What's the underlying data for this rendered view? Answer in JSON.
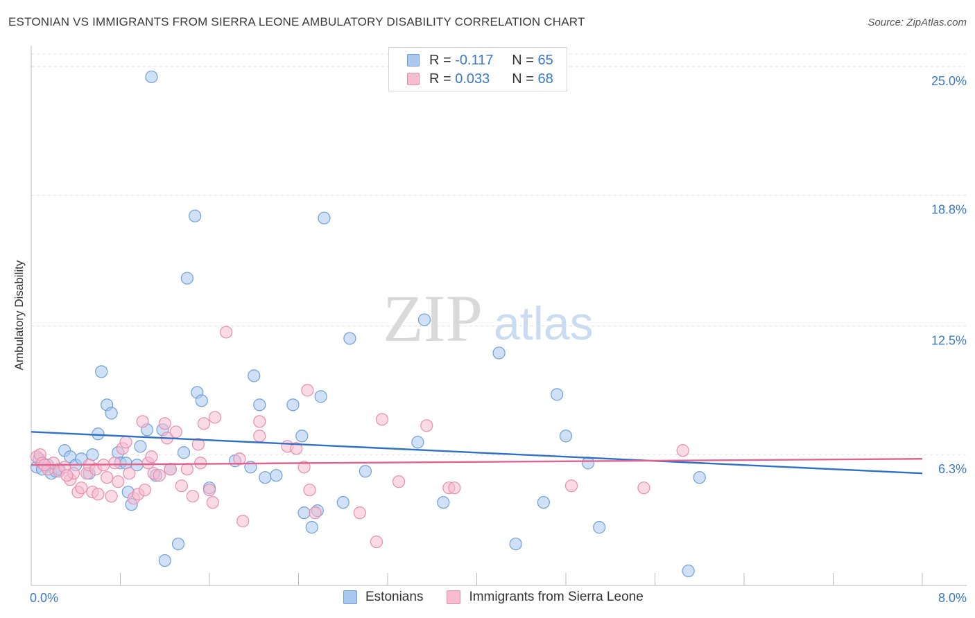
{
  "header": {
    "title": "ESTONIAN VS IMMIGRANTS FROM SIERRA LEONE AMBULATORY DISABILITY CORRELATION CHART",
    "source": "Source: ZipAtlas.com"
  },
  "legend": {
    "rows": [
      {
        "r_label": "R = ",
        "r_value": "-0.117",
        "n_label": "N = ",
        "n_value": "65"
      },
      {
        "r_label": "R = ",
        "r_value": "0.033",
        "n_label": "N = ",
        "n_value": "68"
      }
    ]
  },
  "colors": {
    "series1_fill": "#a9c8f0",
    "series1_stroke": "#6f9fd8",
    "series1_line": "#2e6fca",
    "series2_fill": "#f6bcd0",
    "series2_stroke": "#e98cad",
    "series2_line": "#e2628f",
    "tick_text": "#3a78c9",
    "grid": "#dddddd"
  },
  "watermark": {
    "zip": "ZIP",
    "atlas": "atlas"
  },
  "chart_data": {
    "type": "scatter",
    "xlabel": "",
    "ylabel": "Ambulatory Disability",
    "xlim": [
      0,
      8
    ],
    "ylim": [
      0,
      25.6
    ],
    "x_tick_labels": [
      {
        "value": 0,
        "label": "0.0%"
      },
      {
        "value": 8,
        "label": "8.0%"
      }
    ],
    "y_tick_labels": [
      {
        "value": 6.3,
        "label": "6.3%"
      },
      {
        "value": 12.5,
        "label": "12.5%"
      },
      {
        "value": 18.8,
        "label": "18.8%"
      },
      {
        "value": 25.0,
        "label": "25.0%"
      }
    ],
    "grid": "horizontal dashed",
    "legend_position": "top-center",
    "series": [
      {
        "name": "Estonians",
        "trend": [
          [
            0,
            7.4
          ],
          [
            8,
            5.4
          ]
        ],
        "points": [
          [
            0.05,
            5.7
          ],
          [
            0.1,
            5.6
          ],
          [
            0.15,
            5.8
          ],
          [
            0.18,
            5.4
          ],
          [
            0.22,
            5.5
          ],
          [
            0.3,
            6.5
          ],
          [
            0.35,
            6.2
          ],
          [
            0.4,
            5.8
          ],
          [
            0.45,
            6.1
          ],
          [
            0.52,
            5.4
          ],
          [
            0.55,
            6.3
          ],
          [
            0.6,
            7.3
          ],
          [
            0.63,
            10.3
          ],
          [
            0.68,
            8.7
          ],
          [
            0.72,
            8.3
          ],
          [
            0.78,
            6.4
          ],
          [
            0.8,
            5.9
          ],
          [
            0.85,
            5.9
          ],
          [
            0.87,
            4.5
          ],
          [
            0.9,
            3.9
          ],
          [
            0.95,
            5.8
          ],
          [
            0.98,
            6.7
          ],
          [
            1.04,
            7.5
          ],
          [
            1.08,
            24.5
          ],
          [
            1.12,
            5.3
          ],
          [
            1.18,
            7.5
          ],
          [
            1.2,
            1.2
          ],
          [
            1.32,
            2.0
          ],
          [
            1.37,
            6.4
          ],
          [
            1.4,
            14.8
          ],
          [
            1.47,
            17.8
          ],
          [
            1.49,
            9.3
          ],
          [
            1.53,
            8.9
          ],
          [
            1.6,
            4.7
          ],
          [
            1.83,
            6.0
          ],
          [
            1.97,
            5.7
          ],
          [
            2.0,
            10.1
          ],
          [
            2.05,
            8.7
          ],
          [
            2.1,
            5.2
          ],
          [
            2.2,
            5.3
          ],
          [
            2.35,
            8.7
          ],
          [
            2.43,
            7.2
          ],
          [
            2.45,
            3.5
          ],
          [
            2.52,
            2.8
          ],
          [
            2.57,
            3.6
          ],
          [
            2.6,
            9.1
          ],
          [
            2.63,
            17.7
          ],
          [
            2.8,
            4.0
          ],
          [
            2.86,
            11.9
          ],
          [
            3.0,
            5.5
          ],
          [
            3.47,
            6.9
          ],
          [
            3.53,
            12.8
          ],
          [
            3.7,
            4.0
          ],
          [
            4.2,
            11.2
          ],
          [
            4.35,
            2.0
          ],
          [
            4.6,
            4.0
          ],
          [
            4.72,
            9.2
          ],
          [
            4.8,
            7.2
          ],
          [
            5.0,
            5.9
          ],
          [
            5.1,
            2.8
          ],
          [
            5.9,
            0.7
          ],
          [
            6.0,
            5.2
          ],
          [
            0.07,
            6.1
          ],
          [
            0.25,
            5.6
          ],
          [
            1.25,
            5.6
          ]
        ]
      },
      {
        "name": "Immigrants from Sierra Leone",
        "trend": [
          [
            0,
            5.8
          ],
          [
            8,
            6.1
          ]
        ],
        "points": [
          [
            0.05,
            6.2
          ],
          [
            0.08,
            6.3
          ],
          [
            0.1,
            5.9
          ],
          [
            0.15,
            5.6
          ],
          [
            0.2,
            5.9
          ],
          [
            0.25,
            5.5
          ],
          [
            0.3,
            5.7
          ],
          [
            0.35,
            5.1
          ],
          [
            0.38,
            5.4
          ],
          [
            0.42,
            4.5
          ],
          [
            0.45,
            4.7
          ],
          [
            0.5,
            5.4
          ],
          [
            0.52,
            5.8
          ],
          [
            0.55,
            4.5
          ],
          [
            0.58,
            5.6
          ],
          [
            0.6,
            4.4
          ],
          [
            0.65,
            5.8
          ],
          [
            0.68,
            5.2
          ],
          [
            0.72,
            4.3
          ],
          [
            0.75,
            5.9
          ],
          [
            0.78,
            5.0
          ],
          [
            0.82,
            6.6
          ],
          [
            0.85,
            6.9
          ],
          [
            0.88,
            5.4
          ],
          [
            0.92,
            4.2
          ],
          [
            0.96,
            4.4
          ],
          [
            1.0,
            7.9
          ],
          [
            1.02,
            4.6
          ],
          [
            1.05,
            5.9
          ],
          [
            1.08,
            6.2
          ],
          [
            1.1,
            5.4
          ],
          [
            1.15,
            5.3
          ],
          [
            1.2,
            7.8
          ],
          [
            1.22,
            7.1
          ],
          [
            1.25,
            5.6
          ],
          [
            1.3,
            7.4
          ],
          [
            1.35,
            4.8
          ],
          [
            1.45,
            4.3
          ],
          [
            1.5,
            6.8
          ],
          [
            1.52,
            5.9
          ],
          [
            1.55,
            7.8
          ],
          [
            1.6,
            4.6
          ],
          [
            1.63,
            4.0
          ],
          [
            1.65,
            8.1
          ],
          [
            1.75,
            12.2
          ],
          [
            1.87,
            6.1
          ],
          [
            1.9,
            3.1
          ],
          [
            2.05,
            7.9
          ],
          [
            2.05,
            7.2
          ],
          [
            2.3,
            6.7
          ],
          [
            2.38,
            6.6
          ],
          [
            2.45,
            5.7
          ],
          [
            2.5,
            4.6
          ],
          [
            2.48,
            9.4
          ],
          [
            2.55,
            3.5
          ],
          [
            2.95,
            3.5
          ],
          [
            3.1,
            2.1
          ],
          [
            3.15,
            8.0
          ],
          [
            3.3,
            5.0
          ],
          [
            3.55,
            7.7
          ],
          [
            3.75,
            4.7
          ],
          [
            3.8,
            4.7
          ],
          [
            4.85,
            4.8
          ],
          [
            5.5,
            4.7
          ],
          [
            5.85,
            6.5
          ],
          [
            0.12,
            5.8
          ],
          [
            0.32,
            5.3
          ],
          [
            1.4,
            5.6
          ]
        ]
      }
    ]
  }
}
